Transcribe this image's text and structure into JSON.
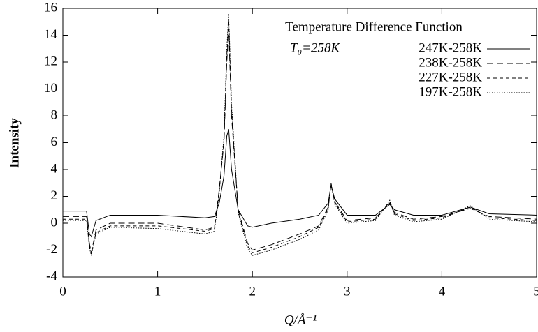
{
  "chart_data": {
    "type": "line",
    "title": "Temperature Difference Function",
    "annotation": "T₀=258K",
    "x_label": "Q/Å⁻¹",
    "y_label": "Intensity",
    "x": [
      0,
      0.25,
      0.28,
      0.3,
      0.35,
      0.5,
      1.0,
      1.5,
      1.6,
      1.65,
      1.7,
      1.73,
      1.75,
      1.78,
      1.85,
      1.95,
      2.0,
      2.2,
      2.5,
      2.7,
      2.8,
      2.83,
      2.87,
      3.0,
      3.3,
      3.45,
      3.5,
      3.7,
      4.0,
      4.3,
      4.5,
      5.0
    ],
    "series": [
      {
        "name": "247K-258K",
        "color": "#000000",
        "linestyle": "solid",
        "values": [
          0.9,
          0.9,
          -0.8,
          -1.0,
          0.2,
          0.6,
          0.6,
          0.4,
          0.5,
          1.5,
          3.5,
          6.5,
          7.0,
          4.0,
          1.0,
          -0.2,
          -0.3,
          0.0,
          0.3,
          0.6,
          1.5,
          2.8,
          1.8,
          0.6,
          0.6,
          1.4,
          1.0,
          0.6,
          0.6,
          1.2,
          0.7,
          0.6
        ]
      },
      {
        "name": "238K-258K",
        "color": "#000000",
        "linestyle": "longdash",
        "values": [
          0.5,
          0.5,
          -1.5,
          -2.2,
          -0.5,
          0.0,
          0.0,
          -0.5,
          -0.3,
          2.5,
          6.0,
          12.0,
          14.5,
          8.0,
          1.0,
          -1.5,
          -2.0,
          -1.6,
          -0.8,
          -0.2,
          1.2,
          2.9,
          1.6,
          0.2,
          0.4,
          1.5,
          0.8,
          0.3,
          0.5,
          1.1,
          0.5,
          0.3
        ]
      },
      {
        "name": "227K-258K",
        "color": "#000000",
        "linestyle": "dashed",
        "values": [
          0.3,
          0.3,
          -1.7,
          -2.3,
          -0.7,
          -0.2,
          -0.2,
          -0.6,
          -0.4,
          2.4,
          6.2,
          12.5,
          15.2,
          8.5,
          0.9,
          -1.7,
          -2.2,
          -1.8,
          -1.0,
          -0.3,
          1.1,
          3.0,
          1.5,
          0.1,
          0.3,
          1.6,
          0.7,
          0.2,
          0.4,
          1.2,
          0.4,
          0.2
        ]
      },
      {
        "name": "197K-258K",
        "color": "#000000",
        "linestyle": "dotted",
        "values": [
          0.2,
          0.2,
          -1.8,
          -2.4,
          -0.8,
          -0.3,
          -0.4,
          -0.8,
          -0.6,
          2.2,
          6.5,
          13.0,
          15.6,
          9.0,
          0.8,
          -1.9,
          -2.4,
          -2.0,
          -1.2,
          -0.5,
          1.0,
          3.0,
          1.4,
          0.0,
          0.2,
          1.7,
          0.6,
          0.1,
          0.3,
          1.3,
          0.3,
          0.1
        ]
      }
    ],
    "xlim": [
      0,
      5
    ],
    "xticks": [
      0,
      1,
      2,
      3,
      4,
      5
    ],
    "ylim": [
      -4,
      16
    ],
    "yticks": [
      -4,
      -2,
      0,
      2,
      4,
      6,
      8,
      10,
      12,
      14,
      16
    ],
    "grid": false,
    "legend": "upper right"
  }
}
